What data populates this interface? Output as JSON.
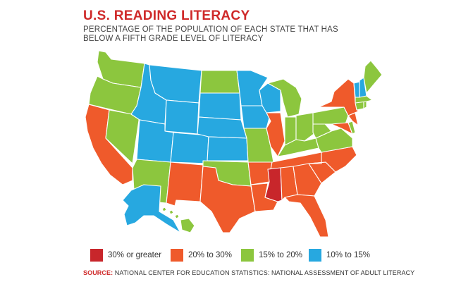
{
  "title": "U.S. READING LITERACY",
  "subtitle": "PERCENTAGE OF THE POPULATION OF EACH STATE THAT HAS\nBELOW A FIFTH GRADE LEVEL OF LITERACY",
  "colors": {
    "over30": "#c8262b",
    "r20to30": "#ef5a2b",
    "r15to20": "#8cc63e",
    "r10to15": "#27a8e0"
  },
  "legend": [
    {
      "label": "30% or greater",
      "color": "#c8262b"
    },
    {
      "label": "20% to 30%",
      "color": "#ef5a2b"
    },
    {
      "label": "15% to 20%",
      "color": "#8cc63e"
    },
    {
      "label": "10% to 15%",
      "color": "#27a8e0"
    }
  ],
  "source": {
    "prefix": "SOURCE:",
    "text": " NATIONAL CENTER FOR EDUCATION STATISTICS: NATIONAL ASSESSMENT OF ADULT LITERACY"
  },
  "state_categories": {
    "WA": "15-20",
    "OR": "15-20",
    "CA": "20-30",
    "NV": "15-20",
    "ID": "10-15",
    "MT": "10-15",
    "WY": "10-15",
    "UT": "10-15",
    "AZ": "15-20",
    "CO": "10-15",
    "NM": "20-30",
    "ND": "15-20",
    "SD": "10-15",
    "NE": "10-15",
    "KS": "10-15",
    "OK": "15-20",
    "TX": "20-30",
    "MN": "10-15",
    "IA": "10-15",
    "MO": "15-20",
    "AR": "20-30",
    "LA": "20-30",
    "WI": "10-15",
    "IL": "20-30",
    "MI": "15-20",
    "IN": "15-20",
    "OH": "15-20",
    "KY": "15-20",
    "TN": "20-30",
    "MS": "30+",
    "AL": "20-30",
    "GA": "20-30",
    "FL": "20-30",
    "SC": "20-30",
    "NC": "20-30",
    "VA": "15-20",
    "WV": "15-20",
    "PA": "15-20",
    "NY": "20-30",
    "MD": "20-30",
    "DE": "15-20",
    "NJ": "20-30",
    "CT": "15-20",
    "RI": "15-20",
    "MA": "15-20",
    "VT": "10-15",
    "NH": "10-15",
    "ME": "15-20",
    "AK": "10-15",
    "HI": "15-20"
  }
}
